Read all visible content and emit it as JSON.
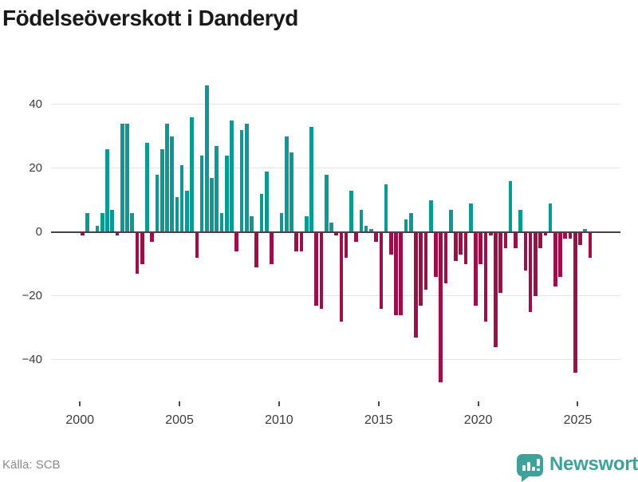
{
  "title": "Födelseöverskott i Danderyd",
  "source": {
    "label": "Källa: SCB"
  },
  "branding": {
    "wordmark": "Newsworthy",
    "icon": "bar-chart-speech-bubble-icon"
  },
  "colors": {
    "positive_bar": "#0b9a93",
    "negative_bar": "#9b0f4b",
    "zero_line": "#3f4549",
    "gridline": "#e4e4e4",
    "title_text": "#191919",
    "axis_text": "#3c3c3c",
    "source_text": "#8a8a8a",
    "brand_teal": "#40a09a"
  },
  "chart_data": {
    "type": "bar",
    "title": "Födelseöverskott i Danderyd",
    "frequency": "quarterly",
    "legend": "none",
    "grid": "horizontal",
    "xlabel": "",
    "ylabel": "",
    "ylim": [
      -50,
      50
    ],
    "x_tick_labels": [
      "2000",
      "2005",
      "2010",
      "2015",
      "2020",
      "2025"
    ],
    "x_ticks": [
      2000,
      2005,
      2010,
      2015,
      2020,
      2025
    ],
    "y_ticks": [
      40,
      20,
      0,
      -20,
      -40
    ],
    "y_tick_labels": [
      "40",
      "20",
      "0",
      "−20",
      "−40"
    ],
    "series": [
      {
        "year": 2000,
        "values": [
          -1,
          6,
          0,
          2
        ]
      },
      {
        "year": 2001,
        "values": [
          6,
          26,
          7,
          -1
        ]
      },
      {
        "year": 2002,
        "values": [
          34,
          34,
          6,
          -13
        ]
      },
      {
        "year": 2003,
        "values": [
          -10,
          28,
          -3,
          18
        ]
      },
      {
        "year": 2004,
        "values": [
          26,
          34,
          30,
          11
        ]
      },
      {
        "year": 2005,
        "values": [
          21,
          13,
          36,
          -8
        ]
      },
      {
        "year": 2006,
        "values": [
          24,
          46,
          17,
          27
        ]
      },
      {
        "year": 2007,
        "values": [
          6,
          24,
          35,
          -6
        ]
      },
      {
        "year": 2008,
        "values": [
          32,
          34,
          5,
          -11
        ]
      },
      {
        "year": 2009,
        "values": [
          12,
          19,
          -10,
          0
        ]
      },
      {
        "year": 2010,
        "values": [
          6,
          30,
          25,
          -6
        ]
      },
      {
        "year": 2011,
        "values": [
          -6,
          5,
          33,
          -23
        ]
      },
      {
        "year": 2012,
        "values": [
          -24,
          18,
          3,
          -1
        ]
      },
      {
        "year": 2013,
        "values": [
          -28,
          -8,
          13,
          -3
        ]
      },
      {
        "year": 2014,
        "values": [
          7,
          2,
          1,
          -3
        ]
      },
      {
        "year": 2015,
        "values": [
          -24,
          15,
          -7,
          -26
        ]
      },
      {
        "year": 2016,
        "values": [
          -26,
          4,
          6,
          -33
        ]
      },
      {
        "year": 2017,
        "values": [
          -23,
          -18,
          10,
          -14
        ]
      },
      {
        "year": 2018,
        "values": [
          -47,
          -16,
          7,
          -9
        ]
      },
      {
        "year": 2019,
        "values": [
          -7,
          -10,
          9,
          -23
        ]
      },
      {
        "year": 2020,
        "values": [
          -10,
          -28,
          -1,
          -36
        ]
      },
      {
        "year": 2021,
        "values": [
          -19,
          -5,
          16,
          -5
        ]
      },
      {
        "year": 2022,
        "values": [
          7,
          -12,
          -25,
          -20
        ]
      },
      {
        "year": 2023,
        "values": [
          -5,
          -1,
          9,
          -17
        ]
      },
      {
        "year": 2024,
        "values": [
          -14,
          -2,
          -2,
          -44
        ]
      },
      {
        "year": 2025,
        "values": [
          -4,
          1,
          -8
        ]
      }
    ]
  }
}
